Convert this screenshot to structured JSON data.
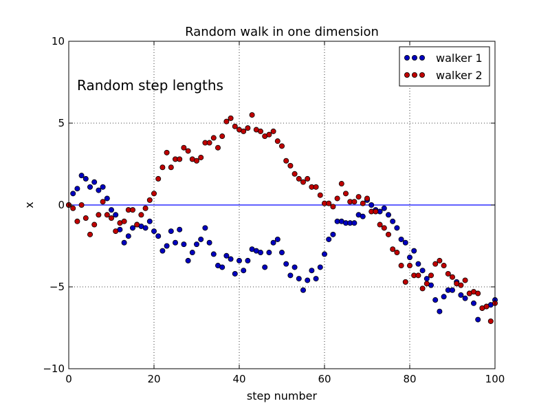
{
  "chart_data": {
    "type": "scatter",
    "title": "Random walk in one dimension",
    "xlabel": "step number",
    "ylabel": "x",
    "xlim": [
      0,
      100
    ],
    "ylim": [
      -10,
      10
    ],
    "xticks": [
      0,
      20,
      40,
      60,
      80,
      100
    ],
    "yticks": [
      10,
      5,
      0,
      -5,
      -10
    ],
    "xtick_labels": [
      "0",
      "20",
      "40",
      "60",
      "80",
      "100"
    ],
    "ytick_labels": [
      "10",
      "5",
      "0",
      "−5",
      "−10"
    ],
    "grid": true,
    "legend_position": "top-right",
    "annotation": "Random step lengths",
    "reference_line": {
      "y": 0,
      "color": "#0000ff"
    },
    "series": [
      {
        "name": "walker 1",
        "color": "#0000bf",
        "x": [
          0,
          1,
          2,
          3,
          4,
          5,
          6,
          7,
          8,
          9,
          10,
          11,
          12,
          13,
          14,
          15,
          16,
          17,
          18,
          19,
          20,
          21,
          22,
          23,
          24,
          25,
          26,
          27,
          28,
          29,
          30,
          31,
          32,
          33,
          34,
          35,
          36,
          37,
          38,
          39,
          40,
          41,
          42,
          43,
          44,
          45,
          46,
          47,
          48,
          49,
          50,
          51,
          52,
          53,
          54,
          55,
          56,
          57,
          58,
          59,
          60,
          61,
          62,
          63,
          64,
          65,
          66,
          67,
          68,
          69,
          70,
          71,
          72,
          73,
          74,
          75,
          76,
          77,
          78,
          79,
          80,
          81,
          82,
          83,
          84,
          85,
          86,
          87,
          88,
          89,
          90,
          91,
          92,
          93,
          94,
          95,
          96,
          97,
          98,
          99,
          100
        ],
        "y": [
          0,
          0.7,
          1.0,
          1.8,
          1.6,
          1.1,
          1.4,
          0.9,
          1.1,
          0.4,
          -0.3,
          -0.6,
          -1.5,
          -2.3,
          -1.9,
          -1.4,
          -1.2,
          -1.3,
          -1.4,
          -1.0,
          -1.6,
          -1.9,
          -2.8,
          -2.5,
          -1.6,
          -2.3,
          -1.5,
          -2.4,
          -3.4,
          -2.9,
          -2.4,
          -2.1,
          -1.4,
          -2.3,
          -3.0,
          -3.7,
          -3.8,
          -3.1,
          -3.3,
          -4.2,
          -3.4,
          -4.0,
          -3.4,
          -2.7,
          -2.8,
          -2.9,
          -3.8,
          -2.9,
          -2.3,
          -2.1,
          -2.9,
          -3.6,
          -4.3,
          -3.8,
          -4.5,
          -5.2,
          -4.6,
          -4.0,
          -4.5,
          -3.8,
          -3.0,
          -2.1,
          -1.8,
          -1.0,
          -1.0,
          -1.1,
          -1.1,
          -1.1,
          -0.6,
          -0.7,
          0.3,
          0.0,
          -0.3,
          -0.4,
          -0.2,
          -0.6,
          -1.0,
          -1.4,
          -2.1,
          -2.3,
          -3.2,
          -2.8,
          -3.6,
          -4.0,
          -4.5,
          -4.9,
          -5.8,
          -6.5,
          -5.6,
          -5.2,
          -5.2,
          -4.7,
          -5.5,
          -5.7,
          -5.4,
          -6.0,
          -7.0,
          -6.3,
          -6.2,
          -6.1,
          -5.8
        ]
      },
      {
        "name": "walker 2",
        "color": "#bf0000",
        "x": [
          0,
          1,
          2,
          3,
          4,
          5,
          6,
          7,
          8,
          9,
          10,
          11,
          12,
          13,
          14,
          15,
          16,
          17,
          18,
          19,
          20,
          21,
          22,
          23,
          24,
          25,
          26,
          27,
          28,
          29,
          30,
          31,
          32,
          33,
          34,
          35,
          36,
          37,
          38,
          39,
          40,
          41,
          42,
          43,
          44,
          45,
          46,
          47,
          48,
          49,
          50,
          51,
          52,
          53,
          54,
          55,
          56,
          57,
          58,
          59,
          60,
          61,
          62,
          63,
          64,
          65,
          66,
          67,
          68,
          69,
          70,
          71,
          72,
          73,
          74,
          75,
          76,
          77,
          78,
          79,
          80,
          81,
          82,
          83,
          84,
          85,
          86,
          87,
          88,
          89,
          90,
          91,
          92,
          93,
          94,
          95,
          96,
          97,
          98,
          99,
          100
        ],
        "y": [
          0,
          -0.2,
          -1.0,
          0.0,
          -0.8,
          -1.8,
          -1.2,
          -0.6,
          0.2,
          -0.6,
          -0.8,
          -1.6,
          -1.1,
          -1.0,
          -0.3,
          -0.3,
          -1.2,
          -0.6,
          -0.2,
          0.3,
          0.7,
          1.6,
          2.3,
          3.2,
          2.3,
          2.8,
          2.8,
          3.5,
          3.3,
          2.8,
          2.7,
          2.9,
          3.8,
          3.8,
          4.1,
          3.5,
          4.2,
          5.1,
          5.3,
          4.8,
          4.6,
          4.5,
          4.7,
          5.5,
          4.6,
          4.5,
          4.2,
          4.3,
          4.5,
          3.9,
          3.6,
          2.7,
          2.4,
          1.9,
          1.6,
          1.4,
          1.6,
          1.1,
          1.1,
          0.6,
          0.1,
          0.1,
          -0.1,
          0.4,
          1.3,
          0.7,
          0.2,
          0.2,
          0.5,
          0.1,
          0.4,
          -0.4,
          -0.4,
          -1.2,
          -1.4,
          -1.8,
          -2.7,
          -2.9,
          -3.7,
          -4.7,
          -3.7,
          -4.3,
          -4.3,
          -5.1,
          -4.8,
          -4.3,
          -3.6,
          -3.4,
          -3.7,
          -4.2,
          -4.4,
          -4.8,
          -4.9,
          -4.6,
          -5.4,
          -5.3,
          -5.4,
          -6.3,
          -6.2,
          -7.1,
          -6.0
        ]
      }
    ]
  }
}
